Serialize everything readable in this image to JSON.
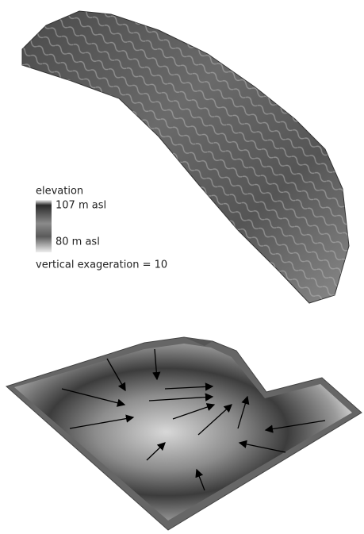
{
  "legend": {
    "title": "elevation",
    "max_label": "107 m asl",
    "min_label": "80 m asl",
    "note": "vertical exageration = 10"
  }
}
